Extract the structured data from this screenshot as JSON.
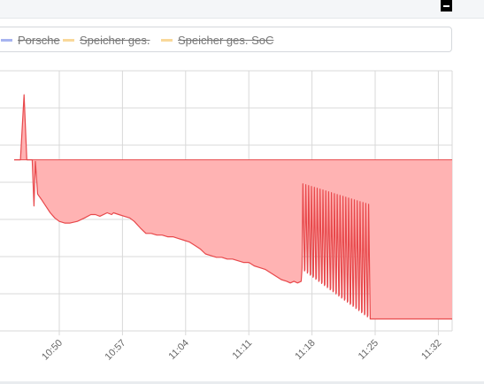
{
  "legend": {
    "items": [
      {
        "label": "Porsche",
        "color": "#a7b4f0"
      },
      {
        "label": "Speicher ges.",
        "color": "#f9d89a"
      },
      {
        "label": "Speicher ges. SoC",
        "color": "#f9d89a"
      }
    ]
  },
  "chart_data": {
    "type": "area",
    "x_ticks": [
      "10:50",
      "10:57",
      "11:04",
      "11:11",
      "11:18",
      "11:25",
      "11:32"
    ],
    "series": [
      {
        "color": "#e8484b",
        "fill": "#ffb3b3",
        "baseline": 1.0,
        "points": [
          [
            -5,
            1.0
          ],
          [
            -4.3,
            1.0
          ],
          [
            -3.9,
            1.38
          ],
          [
            -3.6,
            1.0
          ],
          [
            -3.0,
            1.0
          ],
          [
            -2.8,
            0.73
          ],
          [
            -2.65,
            0.99
          ],
          [
            -2.4,
            0.8
          ],
          [
            -2.0,
            0.77
          ],
          [
            -1.5,
            0.73
          ],
          [
            -1.0,
            0.69
          ],
          [
            -0.5,
            0.66
          ],
          [
            0,
            0.64
          ],
          [
            0.6,
            0.63
          ],
          [
            1.2,
            0.63
          ],
          [
            2.0,
            0.64
          ],
          [
            2.8,
            0.66
          ],
          [
            3.5,
            0.68
          ],
          [
            4.0,
            0.68
          ],
          [
            4.5,
            0.67
          ],
          [
            5.3,
            0.69
          ],
          [
            5.8,
            0.68
          ],
          [
            6.0,
            0.69
          ],
          [
            6.6,
            0.68
          ],
          [
            7.2,
            0.67
          ],
          [
            7.8,
            0.66
          ],
          [
            8.3,
            0.64
          ],
          [
            9.0,
            0.6
          ],
          [
            9.6,
            0.57
          ],
          [
            10.2,
            0.57
          ],
          [
            10.8,
            0.56
          ],
          [
            11.4,
            0.56
          ],
          [
            12.0,
            0.55
          ],
          [
            12.6,
            0.55
          ],
          [
            13.2,
            0.54
          ],
          [
            13.8,
            0.53
          ],
          [
            14.4,
            0.52
          ],
          [
            15.0,
            0.5
          ],
          [
            15.6,
            0.48
          ],
          [
            16.2,
            0.45
          ],
          [
            16.8,
            0.44
          ],
          [
            17.4,
            0.43
          ],
          [
            18.0,
            0.43
          ],
          [
            18.6,
            0.42
          ],
          [
            19.2,
            0.42
          ],
          [
            19.8,
            0.41
          ],
          [
            20.4,
            0.4
          ],
          [
            21.0,
            0.4
          ],
          [
            21.6,
            0.38
          ],
          [
            22.2,
            0.37
          ],
          [
            22.8,
            0.36
          ],
          [
            23.4,
            0.34
          ],
          [
            24.0,
            0.32
          ],
          [
            24.6,
            0.3
          ],
          [
            25.2,
            0.29
          ],
          [
            25.6,
            0.28
          ],
          [
            26.0,
            0.29
          ],
          [
            26.4,
            0.28
          ],
          [
            26.8,
            0.29
          ]
        ],
        "oscillation": {
          "start": 26.9,
          "end": 34.5,
          "count": 24,
          "peak_start": 0.86,
          "peak_end": 0.74,
          "trough_start": 0.35,
          "trough_end": 0.07
        }
      }
    ],
    "ylim": [
      0,
      1.52
    ],
    "grid": true
  }
}
